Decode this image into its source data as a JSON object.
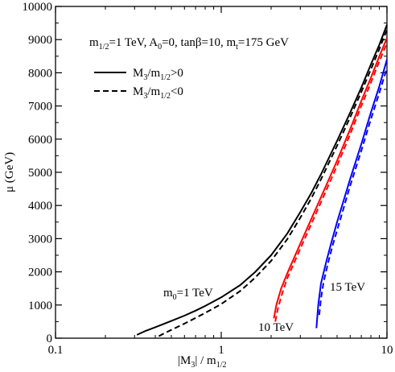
{
  "chart_data": {
    "type": "line",
    "xlabel": {
      "main": "|M",
      "sub1": "3",
      "mid": "| / m",
      "sub2": "1/2"
    },
    "ylabel": "μ (GeV)",
    "x_scale": "log",
    "xlim": [
      0.1,
      10
    ],
    "ylim": [
      0,
      10000
    ],
    "x_ticks": [
      {
        "value": 0.1,
        "label": "0.1"
      },
      {
        "value": 1,
        "label": "1"
      },
      {
        "value": 10,
        "label": "10"
      }
    ],
    "y_ticks": [
      {
        "value": 0,
        "label": "0"
      },
      {
        "value": 1000,
        "label": "1000"
      },
      {
        "value": 2000,
        "label": "2000"
      },
      {
        "value": 3000,
        "label": "3000"
      },
      {
        "value": 4000,
        "label": "4000"
      },
      {
        "value": 5000,
        "label": "5000"
      },
      {
        "value": 6000,
        "label": "6000"
      },
      {
        "value": 7000,
        "label": "7000"
      },
      {
        "value": 8000,
        "label": "8000"
      },
      {
        "value": 9000,
        "label": "9000"
      },
      {
        "value": 10000,
        "label": "10000"
      }
    ],
    "parameters_text": {
      "p1": "m",
      "p1_sub": "1/2",
      "p2": "=1 TeV, A",
      "p2_sub": "0",
      "p3": "=0, tanβ=10, m",
      "p3_sub": "t",
      "p4": "=175 GeV"
    },
    "legend": [
      {
        "style": "solid",
        "main": "M",
        "sub1": "3",
        "mid": "/m",
        "sub2": "1/2",
        "rel": ">0"
      },
      {
        "style": "dashed",
        "main": "M",
        "sub1": "3",
        "mid": "/m",
        "sub2": "1/2",
        "rel": "<0"
      }
    ],
    "annotations": [
      {
        "id": "m0-1tev",
        "main": "m",
        "sub": "0",
        "rest": "=1 TeV"
      },
      {
        "id": "10tev",
        "text": "10 TeV"
      },
      {
        "id": "15tev",
        "text": "15 TeV"
      }
    ],
    "colors": {
      "m0_1TeV": "#000000",
      "m0_10TeV": "#ff0000",
      "m0_15TeV": "#0000ff"
    },
    "series": [
      {
        "group": "m0=1 TeV",
        "sign": "positive",
        "style": "solid",
        "color": "#000000",
        "x": [
          0.31,
          0.35,
          0.4,
          0.5,
          0.6,
          0.7,
          0.8,
          1.0,
          1.3,
          1.6,
          2.0,
          2.5,
          3.0,
          3.5,
          4.0,
          5.0,
          6.0,
          7.0,
          8.0,
          9.0,
          10.0
        ],
        "y": [
          100,
          220,
          330,
          520,
          680,
          830,
          970,
          1230,
          1600,
          1990,
          2500,
          3150,
          3800,
          4380,
          4940,
          5950,
          6800,
          7550,
          8250,
          8850,
          9450
        ]
      },
      {
        "group": "m0=1 TeV",
        "sign": "negative",
        "style": "dashed",
        "color": "#000000",
        "x": [
          0.42,
          0.45,
          0.5,
          0.6,
          0.7,
          0.8,
          1.0,
          1.3,
          1.6,
          2.0,
          2.5,
          3.0,
          3.5,
          4.0,
          5.0,
          6.0,
          7.0,
          8.0,
          9.0,
          10.0
        ],
        "y": [
          60,
          140,
          250,
          440,
          610,
          760,
          1030,
          1420,
          1820,
          2330,
          2980,
          3630,
          4220,
          4790,
          5800,
          6660,
          7420,
          8100,
          8720,
          9300
        ]
      },
      {
        "group": "m0=10 TeV",
        "sign": "positive",
        "style": "solid",
        "color": "#ff0000",
        "x": [
          2.08,
          2.15,
          2.3,
          2.5,
          3.0,
          3.5,
          4.0,
          5.0,
          6.0,
          7.0,
          8.0,
          9.0,
          10.0
        ],
        "y": [
          600,
          1000,
          1500,
          1950,
          2850,
          3600,
          4250,
          5350,
          6300,
          7150,
          7850,
          8500,
          9050
        ]
      },
      {
        "group": "m0=10 TeV",
        "sign": "negative",
        "style": "dashed",
        "color": "#ff0000",
        "x": [
          2.12,
          2.2,
          2.35,
          2.5,
          3.0,
          3.5,
          4.0,
          5.0,
          6.0,
          7.0,
          8.0,
          9.0,
          10.0
        ],
        "y": [
          500,
          900,
          1400,
          1800,
          2700,
          3450,
          4100,
          5200,
          6150,
          7000,
          7700,
          8350,
          8900
        ]
      },
      {
        "group": "m0=15 TeV",
        "sign": "positive",
        "style": "solid",
        "color": "#0000ff",
        "x": [
          3.75,
          3.85,
          4.0,
          4.3,
          4.6,
          5.0,
          6.0,
          7.0,
          8.0,
          9.0,
          10.0
        ],
        "y": [
          300,
          1000,
          1650,
          2300,
          2850,
          3500,
          4800,
          5850,
          6800,
          7600,
          8400
        ]
      },
      {
        "group": "m0=15 TeV",
        "sign": "negative",
        "style": "dashed",
        "color": "#0000ff",
        "x": [
          3.9,
          4.0,
          4.15,
          4.4,
          4.7,
          5.0,
          6.0,
          7.0,
          8.0,
          9.0,
          10.0
        ],
        "y": [
          700,
          1200,
          1700,
          2250,
          2800,
          3250,
          4600,
          5650,
          6600,
          7400,
          8150
        ]
      }
    ]
  }
}
